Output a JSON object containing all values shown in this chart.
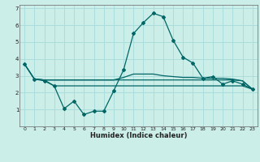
{
  "title": "",
  "xlabel": "Humidex (Indice chaleur)",
  "background_color": "#cceee8",
  "grid_color": "#aadddd",
  "line_color": "#006666",
  "xlim": [
    -0.5,
    23.5
  ],
  "ylim": [
    0,
    7.2
  ],
  "xticks": [
    0,
    1,
    2,
    3,
    4,
    5,
    6,
    7,
    8,
    9,
    10,
    11,
    12,
    13,
    14,
    15,
    16,
    17,
    18,
    19,
    20,
    21,
    22,
    23
  ],
  "yticks": [
    1,
    2,
    3,
    4,
    5,
    6,
    7
  ],
  "series1_x": [
    0,
    1,
    2,
    3,
    4,
    5,
    6,
    7,
    8,
    9,
    10,
    11,
    12,
    13,
    14,
    15,
    16,
    17,
    18,
    19,
    20,
    21,
    22,
    23
  ],
  "series1_y": [
    3.7,
    2.8,
    2.7,
    2.4,
    1.05,
    1.5,
    0.7,
    0.9,
    0.9,
    2.1,
    3.35,
    5.5,
    6.15,
    6.7,
    6.5,
    5.1,
    4.1,
    3.75,
    2.85,
    2.95,
    2.5,
    2.7,
    2.5,
    2.2
  ],
  "series2_x": [
    0,
    1,
    2,
    3,
    4,
    5,
    6,
    7,
    8,
    9,
    10,
    11,
    12,
    13,
    14,
    15,
    16,
    17,
    18,
    19,
    20,
    21,
    22,
    23
  ],
  "series2_y": [
    3.7,
    2.8,
    2.75,
    2.4,
    2.4,
    2.4,
    2.4,
    2.4,
    2.4,
    2.4,
    2.4,
    2.4,
    2.4,
    2.4,
    2.4,
    2.4,
    2.4,
    2.4,
    2.4,
    2.4,
    2.4,
    2.4,
    2.4,
    2.2
  ],
  "series3_x": [
    0,
    1,
    2,
    3,
    4,
    5,
    6,
    7,
    8,
    9,
    10,
    11,
    12,
    13,
    14,
    15,
    16,
    17,
    18,
    19,
    20,
    21,
    22,
    23
  ],
  "series3_y": [
    3.7,
    2.8,
    2.75,
    2.75,
    2.75,
    2.75,
    2.75,
    2.75,
    2.75,
    2.75,
    2.9,
    3.1,
    3.1,
    3.1,
    3.0,
    2.95,
    2.9,
    2.9,
    2.85,
    2.85,
    2.85,
    2.8,
    2.7,
    2.2
  ],
  "series4_x": [
    1,
    2,
    3,
    4,
    5,
    6,
    7,
    8,
    9,
    10,
    11,
    12,
    13,
    14,
    15,
    16,
    17,
    18,
    19,
    20,
    21,
    22,
    23
  ],
  "series4_y": [
    2.8,
    2.75,
    2.75,
    2.75,
    2.75,
    2.75,
    2.75,
    2.75,
    2.75,
    2.75,
    2.75,
    2.75,
    2.75,
    2.75,
    2.75,
    2.75,
    2.75,
    2.75,
    2.75,
    2.75,
    2.75,
    2.7,
    2.2
  ]
}
